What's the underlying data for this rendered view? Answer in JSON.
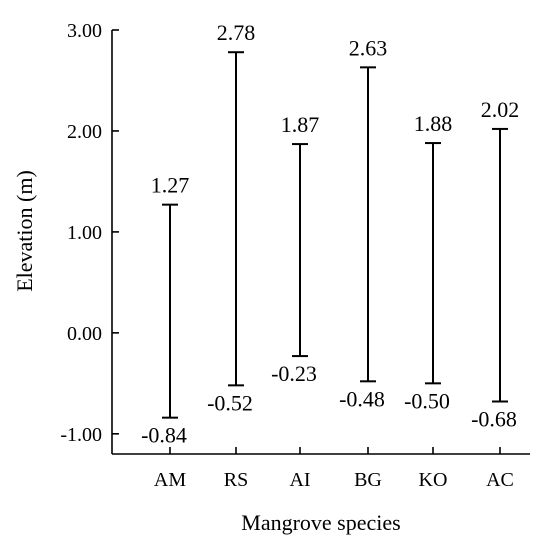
{
  "chart_data": {
    "type": "range",
    "xlabel": "Mangrove species",
    "ylabel": "Elevation (m)",
    "ylim": [
      -1.2,
      3.0
    ],
    "yticks": [
      {
        "value": -1.0,
        "label": "-1.00"
      },
      {
        "value": 0.0,
        "label": "0.00"
      },
      {
        "value": 1.0,
        "label": "1.00"
      },
      {
        "value": 2.0,
        "label": "2.00"
      },
      {
        "value": 3.0,
        "label": "3.00"
      }
    ],
    "categories": [
      "AM",
      "RS",
      "AI",
      "BG",
      "KO",
      "AC"
    ],
    "max": [
      1.27,
      2.78,
      1.87,
      2.63,
      1.88,
      2.02
    ],
    "min": [
      -0.84,
      -0.52,
      -0.23,
      -0.48,
      -0.5,
      -0.68
    ],
    "max_labels": [
      "1.27",
      "2.78",
      "1.87",
      "2.63",
      "1.88",
      "2.02"
    ],
    "min_labels": [
      "-0.84",
      "-0.52",
      "-0.23",
      "-0.48",
      "-0.50",
      "-0.68"
    ],
    "grid": false,
    "legend": "none"
  }
}
